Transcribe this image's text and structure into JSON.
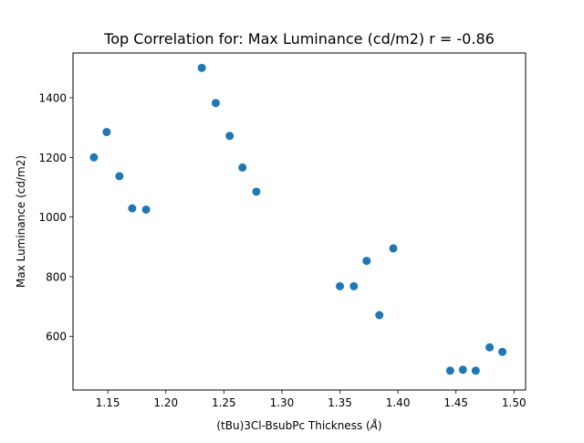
{
  "chart_data": {
    "type": "scatter",
    "title": "Top Correlation for: Max Luminance (cd/m2) r = -0.86",
    "xlabel_prefix": "(tBu)3Cl-BsubPc Thickness (",
    "xlabel_unit": "Å",
    "xlabel_suffix": ")",
    "ylabel": "Max Luminance (cd/m2)",
    "xlim": [
      1.12,
      1.51
    ],
    "ylim": [
      420,
      1550
    ],
    "xticks": [
      1.15,
      1.2,
      1.25,
      1.3,
      1.35,
      1.4,
      1.45,
      1.5
    ],
    "xtick_labels": [
      "1.15",
      "1.20",
      "1.25",
      "1.30",
      "1.35",
      "1.40",
      "1.45",
      "1.50"
    ],
    "yticks": [
      600,
      800,
      1000,
      1200,
      1400
    ],
    "ytick_labels": [
      "600",
      "800",
      "1000",
      "1200",
      "1400"
    ],
    "grid": false,
    "marker_color": "#1f77b4",
    "series": [
      {
        "points": [
          {
            "x": 1.138,
            "y": 1200
          },
          {
            "x": 1.149,
            "y": 1285
          },
          {
            "x": 1.16,
            "y": 1137
          },
          {
            "x": 1.171,
            "y": 1029
          },
          {
            "x": 1.183,
            "y": 1025
          },
          {
            "x": 1.231,
            "y": 1500
          },
          {
            "x": 1.243,
            "y": 1382
          },
          {
            "x": 1.255,
            "y": 1272
          },
          {
            "x": 1.266,
            "y": 1166
          },
          {
            "x": 1.278,
            "y": 1085
          },
          {
            "x": 1.35,
            "y": 768
          },
          {
            "x": 1.362,
            "y": 768
          },
          {
            "x": 1.373,
            "y": 853
          },
          {
            "x": 1.384,
            "y": 671
          },
          {
            "x": 1.396,
            "y": 895
          },
          {
            "x": 1.445,
            "y": 485
          },
          {
            "x": 1.456,
            "y": 488
          },
          {
            "x": 1.467,
            "y": 485
          },
          {
            "x": 1.479,
            "y": 563
          },
          {
            "x": 1.49,
            "y": 548
          }
        ]
      }
    ]
  }
}
